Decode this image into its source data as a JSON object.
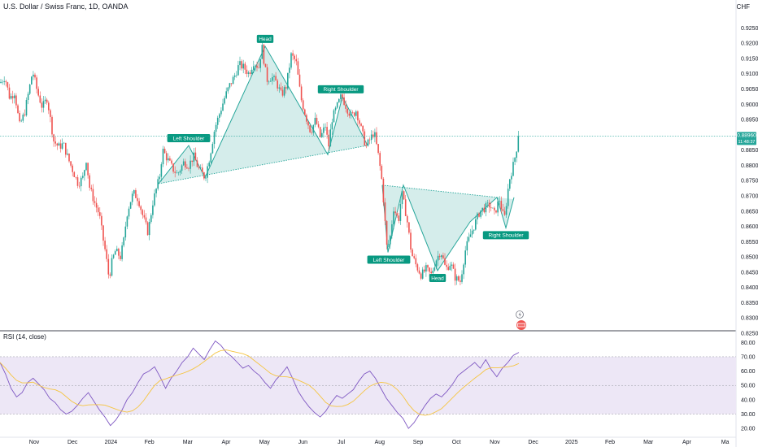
{
  "header": {
    "title": "U.S. Dollar / Swiss Franc, 1D, OANDA",
    "currency": "CHF"
  },
  "price_badge": {
    "price": "0.88960",
    "countdown": "11:48:37"
  },
  "rsi": {
    "title": "RSI (14, close)"
  },
  "colors": {
    "up": "#26a69a",
    "down": "#ef5350",
    "pattern_fill": "#b2dfdb",
    "rsi_line": "#7e57c2",
    "rsi_ma": "#f5c542",
    "rsi_band": "#ede7f6"
  },
  "chart_data": [
    {
      "type": "candlestick",
      "y_ticks": [
        "0.92500",
        "0.92000",
        "0.91500",
        "0.91000",
        "0.90500",
        "0.90000",
        "0.89500",
        "0.88500",
        "0.88000",
        "0.87500",
        "0.87000",
        "0.86500",
        "0.86000",
        "0.85500",
        "0.85000",
        "0.84500",
        "0.84000",
        "0.83500",
        "0.83000",
        "0.82500"
      ],
      "ylim": [
        0.825,
        0.9275
      ],
      "x_ticks": [
        "Nov",
        "Dec",
        "2024",
        "Feb",
        "Mar",
        "Apr",
        "May",
        "Jun",
        "Jul",
        "Aug",
        "Sep",
        "Oct",
        "Nov",
        "Dec",
        "2025",
        "Feb",
        "Mar",
        "Apr",
        "Ma"
      ],
      "last_price": 0.8896,
      "path_points": [
        [
          0,
          0.907
        ],
        [
          6,
          0.909
        ],
        [
          12,
          0.902
        ],
        [
          18,
          0.904
        ],
        [
          24,
          0.893
        ],
        [
          30,
          0.897
        ],
        [
          36,
          0.905
        ],
        [
          40,
          0.911
        ],
        [
          46,
          0.904
        ],
        [
          52,
          0.899
        ],
        [
          58,
          0.902
        ],
        [
          62,
          0.895
        ],
        [
          66,
          0.888
        ],
        [
          72,
          0.886
        ],
        [
          78,
          0.887
        ],
        [
          84,
          0.882
        ],
        [
          90,
          0.878
        ],
        [
          96,
          0.874
        ],
        [
          102,
          0.876
        ],
        [
          106,
          0.882
        ],
        [
          110,
          0.873
        ],
        [
          116,
          0.868
        ],
        [
          122,
          0.864
        ],
        [
          126,
          0.857
        ],
        [
          130,
          0.851
        ],
        [
          134,
          0.843
        ],
        [
          138,
          0.849
        ],
        [
          142,
          0.852
        ],
        [
          148,
          0.85
        ],
        [
          152,
          0.855
        ],
        [
          156,
          0.864
        ],
        [
          160,
          0.868
        ],
        [
          164,
          0.871
        ],
        [
          170,
          0.869
        ],
        [
          176,
          0.863
        ],
        [
          182,
          0.858
        ],
        [
          188,
          0.868
        ],
        [
          192,
          0.872
        ],
        [
          196,
          0.876
        ],
        [
          200,
          0.885
        ],
        [
          206,
          0.882
        ],
        [
          212,
          0.879
        ],
        [
          218,
          0.877
        ],
        [
          226,
          0.881
        ],
        [
          232,
          0.88
        ],
        [
          238,
          0.883
        ],
        [
          244,
          0.879
        ],
        [
          252,
          0.876
        ],
        [
          258,
          0.883
        ],
        [
          264,
          0.892
        ],
        [
          270,
          0.897
        ],
        [
          276,
          0.902
        ],
        [
          282,
          0.906
        ],
        [
          288,
          0.909
        ],
        [
          294,
          0.913
        ],
        [
          300,
          0.912
        ],
        [
          306,
          0.91
        ],
        [
          312,
          0.914
        ],
        [
          318,
          0.912
        ],
        [
          322,
          0.919
        ],
        [
          328,
          0.908
        ],
        [
          334,
          0.909
        ],
        [
          340,
          0.907
        ],
        [
          346,
          0.903
        ],
        [
          352,
          0.906
        ],
        [
          358,
          0.916
        ],
        [
          364,
          0.914
        ],
        [
          370,
          0.902
        ],
        [
          376,
          0.896
        ],
        [
          382,
          0.891
        ],
        [
          388,
          0.895
        ],
        [
          394,
          0.889
        ],
        [
          400,
          0.893
        ],
        [
          404,
          0.886
        ],
        [
          408,
          0.895
        ],
        [
          414,
          0.899
        ],
        [
          420,
          0.903
        ],
        [
          426,
          0.899
        ],
        [
          432,
          0.896
        ],
        [
          438,
          0.898
        ],
        [
          444,
          0.892
        ],
        [
          450,
          0.886
        ],
        [
          456,
          0.889
        ],
        [
          460,
          0.891
        ],
        [
          466,
          0.882
        ],
        [
          470,
          0.874
        ],
        [
          476,
          0.852
        ],
        [
          480,
          0.857
        ],
        [
          484,
          0.866
        ],
        [
          490,
          0.862
        ],
        [
          494,
          0.871
        ],
        [
          500,
          0.863
        ],
        [
          506,
          0.851
        ],
        [
          512,
          0.847
        ],
        [
          518,
          0.844
        ],
        [
          524,
          0.846
        ],
        [
          530,
          0.844
        ],
        [
          536,
          0.849
        ],
        [
          542,
          0.852
        ],
        [
          548,
          0.846
        ],
        [
          554,
          0.848
        ],
        [
          560,
          0.843
        ],
        [
          566,
          0.842
        ],
        [
          572,
          0.852
        ],
        [
          578,
          0.857
        ],
        [
          584,
          0.861
        ],
        [
          590,
          0.865
        ],
        [
          596,
          0.866
        ],
        [
          602,
          0.867
        ],
        [
          608,
          0.864
        ],
        [
          614,
          0.869
        ],
        [
          620,
          0.862
        ],
        [
          626,
          0.875
        ],
        [
          632,
          0.881
        ],
        [
          638,
          0.8896
        ]
      ],
      "patterns": [
        {
          "name": "head-and-shoulders-top",
          "points": [
            [
              195,
              0.874
            ],
            [
              232,
              0.8865
            ],
            [
              252,
              0.876
            ],
            [
              326,
              0.919
            ],
            [
              403,
              0.8835
            ],
            [
              421,
              0.9025
            ],
            [
              452,
              0.8865
            ]
          ],
          "neckline": [
            [
              195,
              0.874
            ],
            [
              452,
              0.8865
            ]
          ],
          "labels": [
            {
              "text": "Left Shoulder",
              "x": 232,
              "y": 0.8865,
              "pos": "above"
            },
            {
              "text": "Head",
              "x": 326,
              "y": 0.919,
              "pos": "above"
            },
            {
              "text": "Right Shoulder",
              "x": 419,
              "y": 0.9025,
              "pos": "above"
            }
          ]
        },
        {
          "name": "inverse-head-and-shoulders",
          "points": [
            [
              470,
              0.8735
            ],
            [
              477,
              0.8515
            ],
            [
              496,
              0.8735
            ],
            [
              538,
              0.8455
            ],
            [
              578,
              0.8615
            ],
            [
              611,
              0.8695
            ],
            [
              622,
              0.8595
            ],
            [
              632,
              0.8695
            ]
          ],
          "neckline": [
            [
              470,
              0.8735
            ],
            [
              611,
              0.8695
            ]
          ],
          "labels": [
            {
              "text": "Left Shoulder",
              "x": 478,
              "y": 0.8515,
              "pos": "below"
            },
            {
              "text": "Head",
              "x": 538,
              "y": 0.8455,
              "pos": "below"
            },
            {
              "text": "Right Shoulder",
              "x": 622,
              "y": 0.8595,
              "pos": "below"
            }
          ]
        }
      ]
    },
    {
      "type": "line",
      "name": "RSI (14, close)",
      "y_ticks": [
        "80.00",
        "70.00",
        "60.00",
        "50.00",
        "40.00",
        "30.00",
        "20.00"
      ],
      "ylim": [
        15,
        83
      ],
      "band": [
        30,
        70
      ],
      "values": [
        66,
        58,
        48,
        42,
        45,
        52,
        55,
        51,
        47,
        41,
        38,
        33,
        30,
        32,
        36,
        41,
        45,
        39,
        33,
        28,
        22,
        26,
        32,
        40,
        45,
        52,
        58,
        60,
        63,
        56,
        48,
        55,
        60,
        66,
        70,
        76,
        72,
        68,
        75,
        81,
        78,
        73,
        70,
        66,
        62,
        64,
        60,
        57,
        52,
        48,
        54,
        58,
        63,
        55,
        46,
        40,
        35,
        31,
        28,
        32,
        38,
        43,
        41,
        44,
        47,
        53,
        58,
        60,
        55,
        48,
        41,
        36,
        31,
        27,
        20,
        24,
        30,
        36,
        41,
        44,
        42,
        46,
        51,
        57,
        60,
        63,
        66,
        62,
        68,
        61,
        56,
        62,
        66,
        71,
        73
      ]
    }
  ]
}
